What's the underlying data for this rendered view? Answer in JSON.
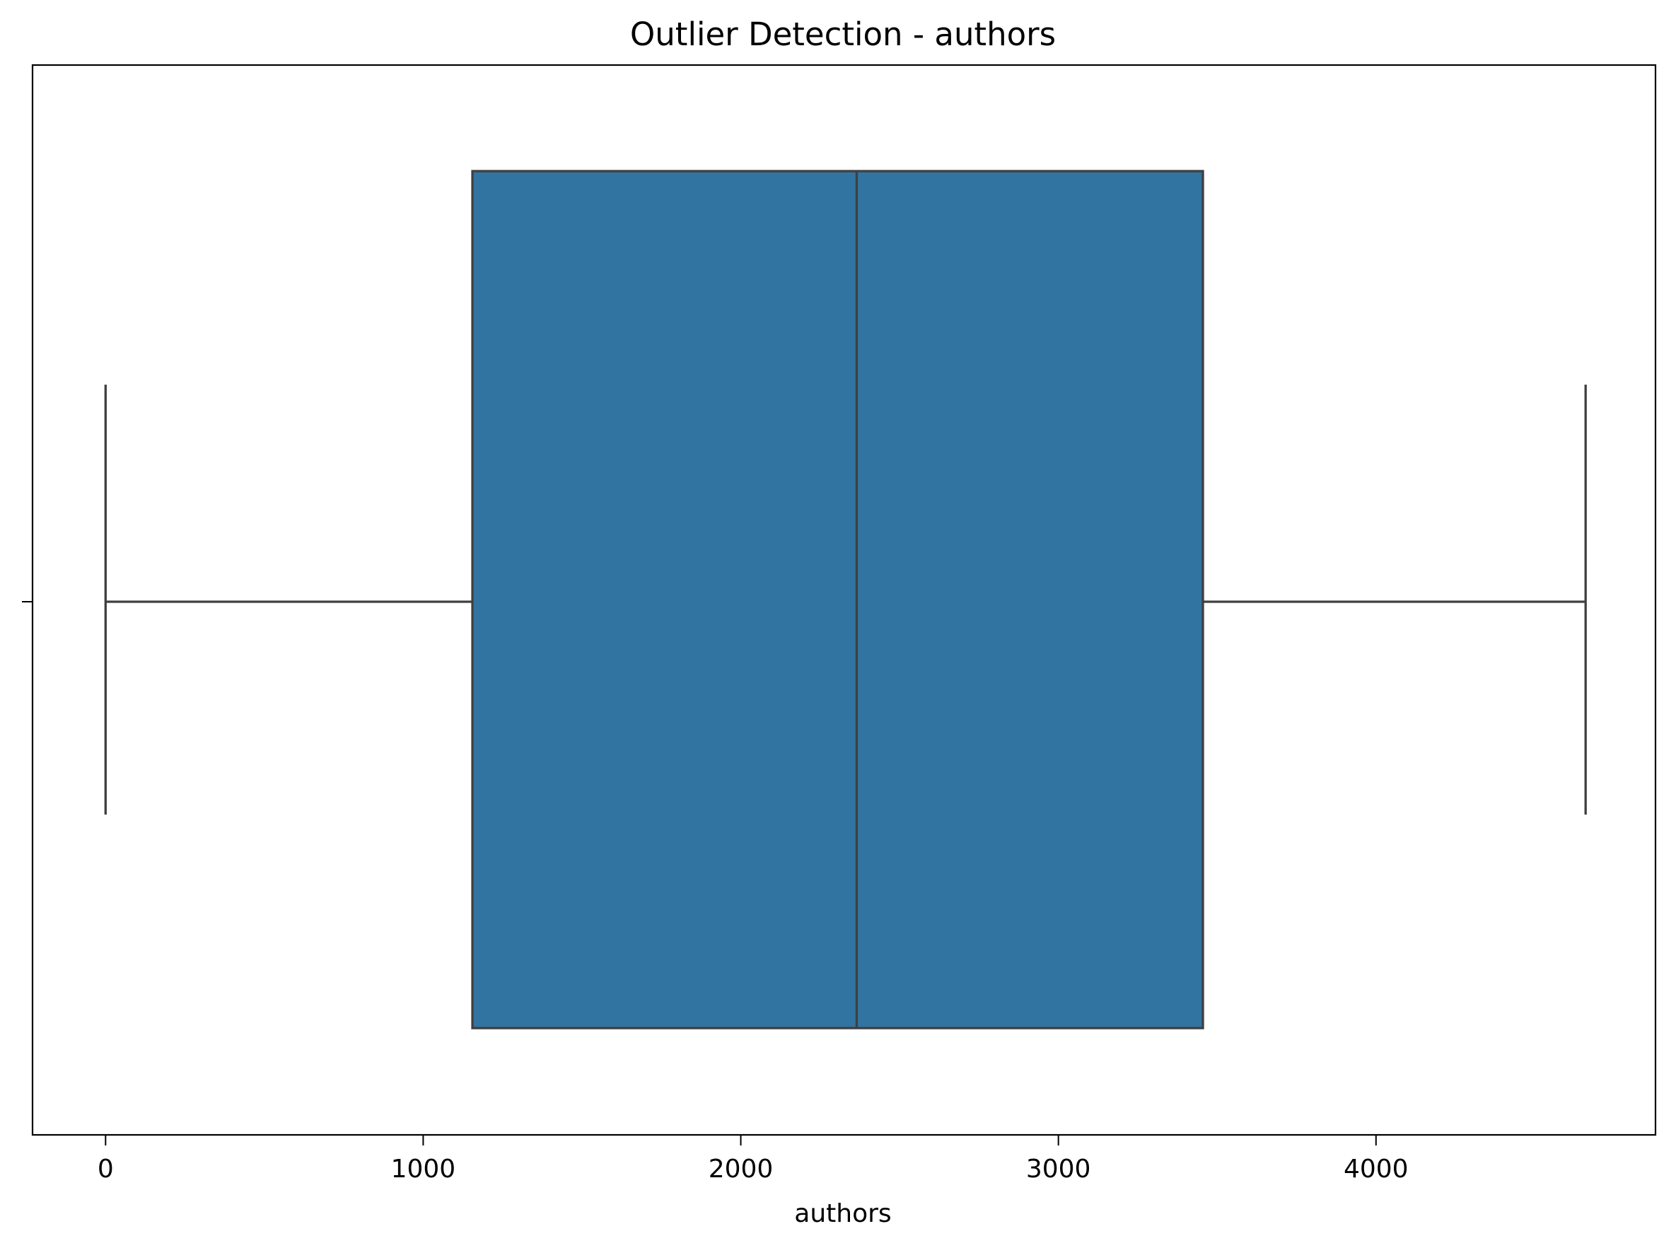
{
  "chart_data": {
    "type": "box",
    "title": "Outlier Detection - authors",
    "xlabel": "authors",
    "ylabel": "",
    "xlim": [
      -230,
      4880
    ],
    "xticks": [
      0,
      1000,
      2000,
      3000,
      4000
    ],
    "xtick_labels": [
      "0",
      "1000",
      "2000",
      "3000",
      "4000"
    ],
    "grid": false,
    "box": {
      "whisker_low": 0,
      "q1": 1155,
      "median": 2365,
      "q3": 3455,
      "whisker_high": 4660,
      "outliers": []
    },
    "colors": {
      "box_fill": "#3274a1",
      "line": "#3f3f3f",
      "frame": "#000000"
    }
  }
}
